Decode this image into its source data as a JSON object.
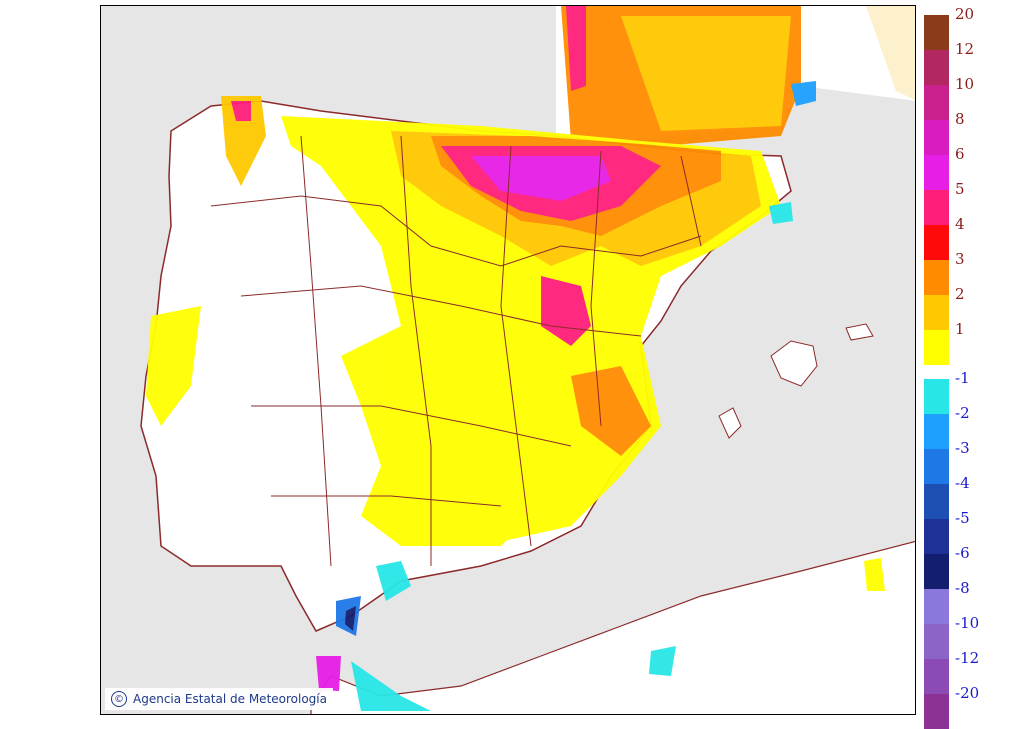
{
  "credit": {
    "symbol": "©",
    "text": "Agencia Estatal de Meteorología"
  },
  "legend": {
    "positive": [
      {
        "label": "20",
        "color": "#8b3a1a"
      },
      {
        "label": "12",
        "color": "#b0285f"
      },
      {
        "label": "10",
        "color": "#c8208c"
      },
      {
        "label": "8",
        "color": "#d81cc0"
      },
      {
        "label": "6",
        "color": "#e61ee6"
      },
      {
        "label": "5",
        "color": "#ff1e7a"
      },
      {
        "label": "4",
        "color": "#ff0a0a"
      },
      {
        "label": "3",
        "color": "#ff8c00"
      },
      {
        "label": "2",
        "color": "#ffc800"
      },
      {
        "label": "1",
        "color": "#ffff00"
      }
    ],
    "negative": [
      {
        "label": "-1",
        "color": "#28e6e6"
      },
      {
        "label": "-2",
        "color": "#1ea0ff"
      },
      {
        "label": "-3",
        "color": "#1e78e6"
      },
      {
        "label": "-4",
        "color": "#1e50b4"
      },
      {
        "label": "-5",
        "color": "#1e3296"
      },
      {
        "label": "-6",
        "color": "#141e6e"
      },
      {
        "label": "-8",
        "color": "#8c78dc"
      },
      {
        "label": "-10",
        "color": "#8c64c8"
      },
      {
        "label": "-12",
        "color": "#8c4ab4"
      },
      {
        "label": "-20",
        "color": "#8c3296"
      }
    ],
    "label_colors": {
      "positive": "#8b1a1a",
      "negative": "#1a1acc"
    }
  },
  "map": {
    "sea_color": "#e6e6e6",
    "land_color": "#ffffff",
    "border_color": "#8b2a2a"
  }
}
